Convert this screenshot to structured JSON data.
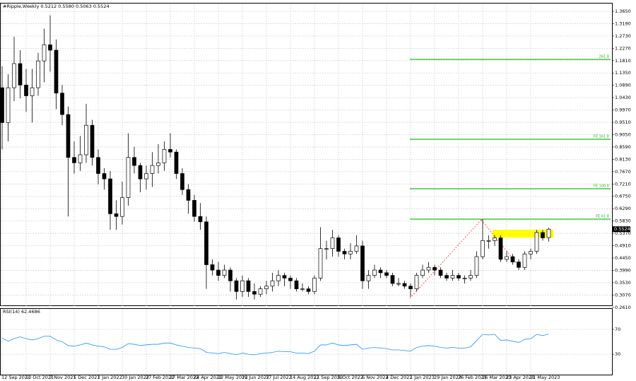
{
  "chart_data": [
    {
      "type": "candlestick",
      "title": "#Ripple,Weekly  0.5212 0.5580 0.5063 0.5524",
      "categories": [
        "12 Sep 2021",
        null,
        null,
        null,
        "10 Oct 2021",
        null,
        null,
        null,
        "7 Nov 2021",
        null,
        null,
        null,
        "5 Dec 2021",
        null,
        null,
        null,
        "2 Jan 2022",
        null,
        null,
        null,
        "30 Jan 2022",
        null,
        null,
        null,
        "27 Feb 2022",
        null,
        null,
        null,
        "27 Mar 2022",
        null,
        null,
        null,
        "24 Apr 2022",
        null,
        null,
        null,
        "22 May 2022",
        null,
        null,
        null,
        "19 Jun 2022",
        null,
        null,
        null,
        "17 Jul 2022",
        null,
        null,
        null,
        "14 Aug 2022",
        null,
        null,
        null,
        "11 Sep 2022",
        null,
        null,
        null,
        "9 Oct 2022",
        null,
        null,
        null,
        "6 Nov 2022",
        null,
        null,
        null,
        "4 Dec 2022",
        null,
        null,
        null,
        "1 Jan 2023",
        null,
        null,
        null,
        "29 Jan 2023",
        null,
        null,
        null,
        "26 Feb 2023",
        null,
        null,
        null,
        "26 Mar 2023",
        null,
        null,
        null,
        "23 Apr 2023",
        null,
        null,
        null,
        "21 May 2023",
        null,
        null,
        null
      ],
      "open": [
        1.08,
        0.95,
        1.08,
        1.17,
        1.09,
        1.05,
        1.08,
        1.18,
        1.24,
        1.22,
        1.06,
        0.98,
        0.82,
        0.8,
        0.83,
        0.94,
        0.82,
        0.76,
        0.74,
        0.61,
        0.6,
        0.67,
        0.82,
        0.79,
        0.74,
        0.76,
        0.79,
        0.8,
        0.85,
        0.84,
        0.76,
        0.7,
        0.66,
        0.6,
        0.58,
        0.42,
        0.4,
        0.38,
        0.4,
        0.36,
        0.32,
        0.36,
        0.32,
        0.31,
        0.33,
        0.34,
        0.36,
        0.38,
        0.37,
        0.36,
        0.33,
        0.33,
        0.32,
        0.37,
        0.48,
        0.48,
        0.52,
        0.47,
        0.46,
        0.47,
        0.49,
        0.36,
        0.38,
        0.4,
        0.39,
        0.38,
        0.35,
        0.35,
        0.34,
        0.33,
        0.38,
        0.4,
        0.41,
        0.4,
        0.38,
        0.37,
        0.38,
        0.37,
        0.37,
        0.38,
        0.45,
        0.51,
        0.51,
        0.52,
        0.44,
        0.45,
        0.43,
        0.41,
        0.46,
        0.47,
        0.54,
        0.5212
      ],
      "high": [
        1.16,
        1.13,
        1.27,
        1.22,
        1.15,
        1.15,
        1.21,
        1.3,
        1.35,
        1.26,
        1.09,
        1.01,
        0.88,
        0.9,
        1.02,
        0.96,
        0.85,
        0.78,
        0.77,
        0.66,
        0.73,
        0.91,
        0.86,
        0.8,
        0.79,
        0.84,
        0.87,
        0.88,
        0.91,
        0.85,
        0.78,
        0.72,
        0.68,
        0.65,
        0.6,
        0.44,
        0.43,
        0.42,
        0.41,
        0.37,
        0.38,
        0.37,
        0.35,
        0.34,
        0.36,
        0.39,
        0.4,
        0.39,
        0.38,
        0.37,
        0.35,
        0.34,
        0.38,
        0.56,
        0.51,
        0.55,
        0.53,
        0.48,
        0.5,
        0.53,
        0.51,
        0.4,
        0.42,
        0.41,
        0.4,
        0.39,
        0.37,
        0.36,
        0.35,
        0.39,
        0.42,
        0.43,
        0.42,
        0.41,
        0.39,
        0.4,
        0.39,
        0.38,
        0.4,
        0.47,
        0.59,
        0.53,
        0.53,
        0.53,
        0.47,
        0.46,
        0.44,
        0.47,
        0.48,
        0.55,
        0.55,
        0.558
      ],
      "low": [
        0.85,
        0.88,
        1.03,
        1.04,
        0.99,
        0.95,
        1.05,
        1.1,
        1.14,
        1.0,
        0.94,
        0.6,
        0.76,
        0.77,
        0.8,
        0.79,
        0.72,
        0.7,
        0.55,
        0.55,
        0.57,
        0.64,
        0.76,
        0.69,
        0.7,
        0.71,
        0.76,
        0.77,
        0.82,
        0.74,
        0.68,
        0.61,
        0.58,
        0.55,
        0.33,
        0.38,
        0.36,
        0.37,
        0.32,
        0.29,
        0.3,
        0.3,
        0.29,
        0.3,
        0.31,
        0.32,
        0.34,
        0.34,
        0.33,
        0.32,
        0.32,
        0.31,
        0.31,
        0.36,
        0.44,
        0.45,
        0.45,
        0.44,
        0.44,
        0.46,
        0.33,
        0.33,
        0.37,
        0.37,
        0.37,
        0.34,
        0.34,
        0.33,
        0.3,
        0.32,
        0.37,
        0.39,
        0.38,
        0.37,
        0.36,
        0.36,
        0.36,
        0.35,
        0.36,
        0.37,
        0.44,
        0.48,
        0.49,
        0.43,
        0.43,
        0.42,
        0.4,
        0.4,
        0.44,
        0.46,
        0.51,
        0.5063
      ],
      "close": [
        0.95,
        1.08,
        1.17,
        1.09,
        1.05,
        1.08,
        1.18,
        1.24,
        1.22,
        1.06,
        0.98,
        0.82,
        0.8,
        0.83,
        0.94,
        0.82,
        0.76,
        0.74,
        0.61,
        0.6,
        0.67,
        0.82,
        0.79,
        0.74,
        0.76,
        0.79,
        0.8,
        0.85,
        0.84,
        0.76,
        0.7,
        0.66,
        0.6,
        0.58,
        0.42,
        0.4,
        0.38,
        0.4,
        0.36,
        0.32,
        0.36,
        0.32,
        0.31,
        0.33,
        0.34,
        0.36,
        0.38,
        0.37,
        0.36,
        0.33,
        0.33,
        0.32,
        0.37,
        0.48,
        0.48,
        0.52,
        0.47,
        0.46,
        0.47,
        0.49,
        0.36,
        0.38,
        0.4,
        0.39,
        0.38,
        0.35,
        0.35,
        0.34,
        0.33,
        0.38,
        0.4,
        0.41,
        0.4,
        0.38,
        0.37,
        0.38,
        0.37,
        0.37,
        0.38,
        0.45,
        0.51,
        0.51,
        0.52,
        0.44,
        0.45,
        0.43,
        0.41,
        0.46,
        0.47,
        0.54,
        0.52,
        0.5524
      ],
      "ylim": [
        0.2657,
        1.394
      ],
      "yticks": [
        {
          "value": 1.365,
          "label": "1.3650"
        },
        {
          "value": 1.319,
          "label": "1.3190"
        },
        {
          "value": 1.273,
          "label": "1.2730"
        },
        {
          "value": 1.227,
          "label": "1.2270"
        },
        {
          "value": 1.181,
          "label": "1.1810"
        },
        {
          "value": 1.135,
          "label": "1.1350"
        },
        {
          "value": 1.089,
          "label": "1.0890"
        },
        {
          "value": 1.043,
          "label": "1.0430"
        },
        {
          "value": 0.997,
          "label": "0.9970"
        },
        {
          "value": 0.951,
          "label": "0.9510"
        },
        {
          "value": 0.905,
          "label": "0.9050"
        },
        {
          "value": 0.859,
          "label": "0.8590"
        },
        {
          "value": 0.813,
          "label": "0.8130"
        },
        {
          "value": 0.767,
          "label": "0.7670"
        },
        {
          "value": 0.721,
          "label": "0.7210"
        },
        {
          "value": 0.675,
          "label": "0.6750"
        },
        {
          "value": 0.629,
          "label": "0.6290"
        },
        {
          "value": 0.583,
          "label": "0.5830"
        },
        {
          "value": 0.537,
          "label": "0.5370"
        },
        {
          "value": 0.491,
          "label": "0.4910"
        },
        {
          "value": 0.445,
          "label": "0.4450"
        },
        {
          "value": 0.399,
          "label": "0.3990"
        },
        {
          "value": 0.353,
          "label": "0.3530"
        },
        {
          "value": 0.307,
          "label": "0.3070"
        },
        {
          "value": 0.261,
          "label": "0.2610"
        }
      ],
      "last_price": 0.5524,
      "fibo_levels": [
        {
          "label": "261.8",
          "value": 1.1857
        },
        {
          "label": "FE 161.8",
          "value": 0.8879
        },
        {
          "label": "FE 100.0",
          "value": 0.7033
        },
        {
          "label": "FE 61.8",
          "value": 0.59
        }
      ],
      "fibo_color": "#22b822",
      "zone": [
        0.5215,
        0.5504
      ],
      "zone_color": "#ffff00",
      "trend_points": [
        0.2948,
        0.5874,
        0.4187
      ],
      "trend_color": "#ff3030",
      "grid": true
    },
    {
      "type": "line",
      "title": "RSI(14) 62.4686",
      "series": [
        {
          "name": "RSI(14)",
          "color": "#1e90ff",
          "values": [
            56,
            51,
            55,
            58,
            55,
            53,
            55,
            59,
            59,
            53,
            50,
            44,
            43,
            45,
            48,
            45,
            43,
            42,
            38,
            38,
            41,
            47,
            46,
            44,
            45,
            46,
            46,
            48,
            48,
            45,
            43,
            41,
            40,
            39,
            33,
            32,
            31,
            33,
            31,
            29,
            32,
            30,
            29,
            31,
            32,
            33,
            35,
            34,
            34,
            32,
            32,
            31,
            35,
            45,
            45,
            48,
            45,
            44,
            45,
            46,
            38,
            40,
            41,
            40,
            39,
            37,
            37,
            36,
            35,
            41,
            43,
            44,
            43,
            41,
            40,
            41,
            40,
            40,
            42,
            52,
            62,
            61,
            62,
            52,
            53,
            51,
            49,
            54,
            55,
            62,
            60,
            62.4686
          ]
        }
      ],
      "ylim": [
        -4,
        103
      ],
      "yticks": [
        30,
        70
      ],
      "grid": true
    }
  ]
}
